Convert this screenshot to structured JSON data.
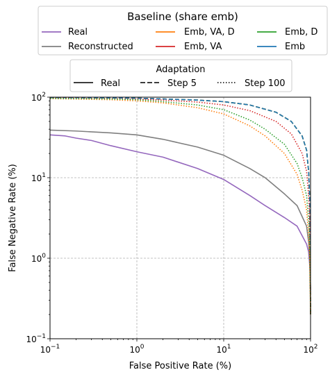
{
  "chart_data": {
    "type": "line",
    "xlabel": "False Positive Rate (%)",
    "ylabel": "False Negative Rate (%)",
    "xscale": "log",
    "yscale": "log",
    "xlim": [
      0.1,
      100
    ],
    "ylim": [
      0.1,
      100
    ],
    "grid": true,
    "x_ticks": [
      {
        "value": 0.1,
        "base": "10",
        "exp": "−1"
      },
      {
        "value": 1,
        "base": "10",
        "exp": "0"
      },
      {
        "value": 10,
        "base": "10",
        "exp": "1"
      },
      {
        "value": 100,
        "base": "10",
        "exp": "2"
      }
    ],
    "y_ticks": [
      {
        "value": 0.1,
        "base": "10",
        "exp": "−1"
      },
      {
        "value": 1,
        "base": "10",
        "exp": "0"
      },
      {
        "value": 10,
        "base": "10",
        "exp": "1"
      },
      {
        "value": 100,
        "base": "10",
        "exp": "2"
      }
    ],
    "legend_main": {
      "title": "Baseline (share emb)",
      "placement": "top-center",
      "entries": [
        {
          "label": "Real",
          "color": "#9467bd"
        },
        {
          "label": "Reconstructed",
          "color": "#7f7f7f"
        },
        {
          "label": "Emb, VA, D",
          "color": "#ff7f0e"
        },
        {
          "label": "Emb, VA",
          "color": "#d62728"
        },
        {
          "label": "Emb, D",
          "color": "#2ca02c"
        },
        {
          "label": "Emb",
          "color": "#1f77b4"
        }
      ]
    },
    "legend_style": {
      "title": "Adaptation",
      "placement": "top-center",
      "entries": [
        {
          "label": "Real",
          "dash": "solid"
        },
        {
          "label": "Step 5",
          "dash": "dashed"
        },
        {
          "label": "Step 100",
          "dash": "dotted"
        }
      ]
    },
    "series": [
      {
        "color": "#9467bd",
        "style": "solid",
        "x": [
          0.1,
          0.15,
          0.2,
          0.3,
          0.5,
          1,
          2,
          5,
          10,
          20,
          30,
          50,
          70,
          90,
          95,
          98,
          99,
          100
        ],
        "y": [
          34,
          33,
          31,
          29,
          25,
          21,
          18,
          13,
          9.5,
          6,
          4.5,
          3.2,
          2.5,
          1.5,
          1.2,
          0.8,
          0.6,
          0.4
        ]
      },
      {
        "color": "#7f7f7f",
        "style": "solid",
        "x": [
          0.1,
          0.2,
          0.5,
          1,
          2,
          5,
          10,
          20,
          30,
          50,
          70,
          90,
          95,
          98,
          100
        ],
        "y": [
          39,
          38,
          36,
          34,
          30,
          24,
          19,
          13,
          10,
          6.3,
          4.5,
          2.5,
          1.6,
          1.0,
          0.4
        ]
      },
      {
        "color": "#ff7f0e",
        "style": "dashed",
        "x": [
          0.1,
          0.5,
          1,
          2,
          5,
          10,
          20,
          40,
          60,
          80,
          90,
          95,
          98,
          100
        ],
        "y": [
          99,
          98,
          97,
          95,
          92,
          88,
          80,
          65,
          50,
          33,
          22,
          12,
          5,
          0.2
        ]
      },
      {
        "color": "#d62728",
        "style": "dashed",
        "x": [
          0.1,
          0.5,
          1,
          2,
          5,
          10,
          20,
          40,
          60,
          80,
          90,
          95,
          98,
          100
        ],
        "y": [
          99,
          98,
          97,
          95,
          92,
          88,
          80,
          65,
          50,
          33,
          22,
          12,
          5,
          0.2
        ]
      },
      {
        "color": "#2ca02c",
        "style": "dashed",
        "x": [
          0.1,
          0.5,
          1,
          2,
          5,
          10,
          20,
          40,
          60,
          80,
          90,
          95,
          98,
          100
        ],
        "y": [
          99,
          98,
          97,
          95,
          92,
          88,
          80,
          65,
          50,
          33,
          22,
          12,
          5,
          0.2
        ]
      },
      {
        "color": "#1f77b4",
        "style": "dashed",
        "x": [
          0.1,
          0.5,
          1,
          2,
          5,
          10,
          20,
          40,
          60,
          80,
          90,
          95,
          98,
          100
        ],
        "y": [
          99,
          98,
          97,
          95,
          92,
          88,
          80,
          65,
          50,
          33,
          22,
          12,
          5,
          0.2
        ]
      },
      {
        "color": "#ff7f0e",
        "style": "dotted",
        "x": [
          0.1,
          0.5,
          1,
          2,
          5,
          10,
          20,
          30,
          50,
          70,
          80,
          90,
          95,
          98,
          100
        ],
        "y": [
          96,
          93,
          90,
          85,
          74,
          62,
          44,
          33,
          20,
          11,
          7,
          4,
          2,
          1,
          0.2
        ]
      },
      {
        "color": "#d62728",
        "style": "dotted",
        "x": [
          0.1,
          0.5,
          1,
          2,
          5,
          10,
          20,
          40,
          60,
          80,
          90,
          95,
          98,
          100
        ],
        "y": [
          98,
          96,
          95,
          92,
          87,
          80,
          68,
          50,
          35,
          20,
          12,
          6,
          3,
          0.2
        ]
      },
      {
        "color": "#2ca02c",
        "style": "dotted",
        "x": [
          0.1,
          0.5,
          1,
          2,
          5,
          10,
          20,
          30,
          50,
          70,
          80,
          90,
          95,
          98,
          100
        ],
        "y": [
          97,
          95,
          93,
          88,
          80,
          70,
          52,
          40,
          26,
          15,
          10,
          6,
          3,
          1.5,
          0.2
        ]
      }
    ]
  }
}
